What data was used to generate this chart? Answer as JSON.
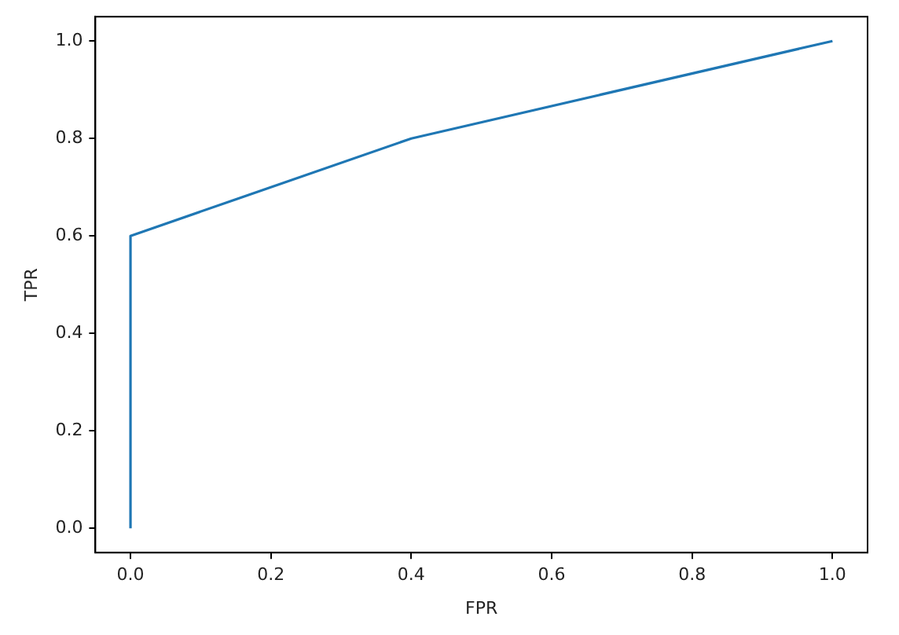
{
  "chart_data": {
    "type": "line",
    "xlabel": "FPR",
    "ylabel": "TPR",
    "x": [
      0,
      0,
      0.4,
      1
    ],
    "series": [
      {
        "color": "#1f77b4",
        "values": [
          0,
          0.6,
          0.8,
          1
        ]
      }
    ],
    "xlim": [
      -0.05,
      1.05
    ],
    "ylim": [
      -0.05,
      1.05
    ],
    "xticks": [
      {
        "value": 0,
        "label": "0.0"
      },
      0.2,
      0.4,
      0.6,
      0.8,
      {
        "value": 1,
        "label": "1.0"
      }
    ],
    "yticks": [
      {
        "value": 0,
        "label": "0.0"
      },
      0.2,
      0.4,
      0.6,
      0.8,
      {
        "value": 1,
        "label": "1.0"
      }
    ],
    "grid": false,
    "legend": false,
    "marker": "none",
    "line_style": "solid"
  }
}
